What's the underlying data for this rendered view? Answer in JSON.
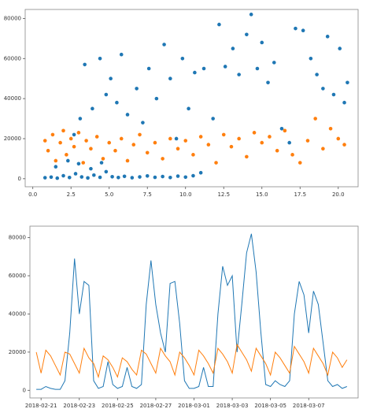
{
  "chart_data": [
    {
      "type": "scatter",
      "xlim": [
        -0.5,
        21.3
      ],
      "ylim": [
        -4000,
        84500
      ],
      "xticks": [
        {
          "value": 0,
          "label": "0.0"
        },
        2.5,
        {
          "value": 5,
          "label": "5.0"
        },
        7.5,
        {
          "value": 10,
          "label": "10.0"
        },
        12.5,
        {
          "value": 15,
          "label": "15.0"
        },
        17.5,
        {
          "value": 20,
          "label": "20.0"
        }
      ],
      "yticks": [
        0,
        20000,
        40000,
        60000,
        80000
      ],
      "series": [
        {
          "color": "#1f77b4",
          "x": [
            0.8,
            1.2,
            1.6,
            2.0,
            2.4,
            2.8,
            3.2,
            3.6,
            4.0,
            4.4,
            4.8,
            5.2,
            5.6,
            6.0,
            6.5,
            7.0,
            7.5,
            8.0,
            8.5,
            9.0,
            9.5,
            10.0,
            10.5,
            11.0,
            1.5,
            2.3,
            3.0,
            3.8,
            4.5,
            2.7,
            3.1,
            3.4,
            3.9,
            4.4,
            4.8,
            5.1,
            5.5,
            5.8,
            6.2,
            6.8,
            7.2,
            7.6,
            8.1,
            8.6,
            9.0,
            9.4,
            9.8,
            10.2,
            10.6,
            11.2,
            11.8,
            12.2,
            12.6,
            13.1,
            13.5,
            14.0,
            14.3,
            14.7,
            15.0,
            15.4,
            15.8,
            16.3,
            16.8,
            17.2,
            17.7,
            18.2,
            18.6,
            19.0,
            19.3,
            19.7,
            20.1,
            20.4,
            20.6
          ],
          "values": [
            500,
            800,
            300,
            1500,
            600,
            2500,
            900,
            400,
            1800,
            700,
            3500,
            1000,
            600,
            1200,
            500,
            900,
            1400,
            700,
            1100,
            600,
            1300,
            800,
            1500,
            3000,
            6000,
            9000,
            7500,
            5000,
            8000,
            22000,
            30000,
            57000,
            35000,
            60000,
            42000,
            50000,
            38000,
            62000,
            32000,
            45000,
            28000,
            55000,
            40000,
            67000,
            50000,
            20000,
            60000,
            35000,
            53000,
            55000,
            30000,
            77000,
            56000,
            65000,
            52000,
            72000,
            82000,
            55000,
            68000,
            48000,
            58000,
            25000,
            18000,
            75000,
            74000,
            60000,
            52000,
            45000,
            71000,
            42000,
            65000,
            38000,
            48000
          ]
        },
        {
          "color": "#ff7f0e",
          "x": [
            0.8,
            1.0,
            1.3,
            1.5,
            1.8,
            2.0,
            2.2,
            2.5,
            2.7,
            3.0,
            3.3,
            3.5,
            3.8,
            4.2,
            4.6,
            5.0,
            5.4,
            5.8,
            6.2,
            6.6,
            7.0,
            7.5,
            8.0,
            8.5,
            9.0,
            9.5,
            10.0,
            10.5,
            11.0,
            11.5,
            12.0,
            12.5,
            13.0,
            13.5,
            14.0,
            14.5,
            15.0,
            15.5,
            16.0,
            16.5,
            17.0,
            17.5,
            18.0,
            18.5,
            19.0,
            19.5,
            20.0,
            20.4
          ],
          "values": [
            19000,
            14000,
            22000,
            9000,
            18000,
            24000,
            12000,
            20000,
            16000,
            23000,
            8000,
            19000,
            15000,
            21000,
            10000,
            18000,
            14000,
            20000,
            9000,
            17000,
            22000,
            13000,
            18000,
            10000,
            20000,
            15000,
            19000,
            12000,
            21000,
            17000,
            8000,
            22000,
            16000,
            20000,
            11000,
            23000,
            18000,
            21000,
            14000,
            24000,
            12000,
            8000,
            19000,
            30000,
            15000,
            25000,
            20000,
            17000
          ]
        }
      ]
    },
    {
      "type": "line",
      "xlim": [
        "2018-02-20 10:00",
        "2018-03-09 14:00"
      ],
      "ylim": [
        -4000,
        86000
      ],
      "xticks": [
        "2018-02-21",
        "2018-02-23",
        "2018-02-25",
        "2018-02-27",
        "2018-03-01",
        "2018-03-03",
        "2018-03-05",
        "2018-03-07"
      ],
      "yticks": [
        0,
        20000,
        40000,
        60000,
        80000
      ],
      "x": [
        "2018-02-20 18:00",
        "2018-02-21 00:00",
        "2018-02-21 06:00",
        "2018-02-21 12:00",
        "2018-02-21 18:00",
        "2018-02-22 00:00",
        "2018-02-22 06:00",
        "2018-02-22 12:00",
        "2018-02-22 18:00",
        "2018-02-23 00:00",
        "2018-02-23 06:00",
        "2018-02-23 12:00",
        "2018-02-23 18:00",
        "2018-02-24 00:00",
        "2018-02-24 06:00",
        "2018-02-24 12:00",
        "2018-02-24 18:00",
        "2018-02-25 00:00",
        "2018-02-25 06:00",
        "2018-02-25 12:00",
        "2018-02-25 18:00",
        "2018-02-26 00:00",
        "2018-02-26 06:00",
        "2018-02-26 12:00",
        "2018-02-26 18:00",
        "2018-02-27 00:00",
        "2018-02-27 06:00",
        "2018-02-27 12:00",
        "2018-02-27 18:00",
        "2018-02-28 00:00",
        "2018-02-28 06:00",
        "2018-02-28 12:00",
        "2018-02-28 18:00",
        "2018-03-01 00:00",
        "2018-03-01 06:00",
        "2018-03-01 12:00",
        "2018-03-01 18:00",
        "2018-03-02 00:00",
        "2018-03-02 06:00",
        "2018-03-02 12:00",
        "2018-03-02 18:00",
        "2018-03-03 00:00",
        "2018-03-03 06:00",
        "2018-03-03 12:00",
        "2018-03-03 18:00",
        "2018-03-04 00:00",
        "2018-03-04 06:00",
        "2018-03-04 12:00",
        "2018-03-04 18:00",
        "2018-03-05 00:00",
        "2018-03-05 06:00",
        "2018-03-05 12:00",
        "2018-03-05 18:00",
        "2018-03-06 00:00",
        "2018-03-06 06:00",
        "2018-03-06 12:00",
        "2018-03-06 18:00",
        "2018-03-07 00:00",
        "2018-03-07 06:00",
        "2018-03-07 12:00",
        "2018-03-07 18:00",
        "2018-03-08 00:00",
        "2018-03-08 06:00",
        "2018-03-08 12:00",
        "2018-03-08 18:00",
        "2018-03-09 00:00"
      ],
      "series": [
        {
          "color": "#1f77b4",
          "values": [
            500,
            500,
            2000,
            1000,
            500,
            500,
            5000,
            30000,
            69000,
            40000,
            57000,
            55000,
            5000,
            1000,
            2000,
            15000,
            3000,
            1000,
            2000,
            12000,
            2000,
            1000,
            3000,
            45000,
            68000,
            45000,
            30000,
            20000,
            56000,
            57000,
            35000,
            5000,
            1000,
            1000,
            2000,
            12000,
            2000,
            2000,
            40000,
            65000,
            55000,
            60000,
            20000,
            45000,
            72000,
            82000,
            62000,
            30000,
            3000,
            2000,
            5000,
            3000,
            2000,
            5000,
            40000,
            57000,
            50000,
            30000,
            52000,
            45000,
            25000,
            5000,
            2000,
            3000,
            1000,
            2000
          ]
        },
        {
          "color": "#ff7f0e",
          "values": [
            20000,
            9000,
            21000,
            18000,
            13000,
            8000,
            20000,
            19000,
            14000,
            9000,
            22000,
            17000,
            14000,
            7000,
            18000,
            16000,
            12000,
            7000,
            17000,
            15000,
            11000,
            8000,
            21000,
            19000,
            14000,
            9000,
            22000,
            18000,
            15000,
            8000,
            20000,
            17000,
            13000,
            8000,
            21000,
            18000,
            14000,
            9000,
            22000,
            19000,
            15000,
            9000,
            24000,
            20000,
            16000,
            10000,
            22000,
            18000,
            14000,
            8000,
            20000,
            17000,
            13000,
            9000,
            23000,
            19000,
            15000,
            9000,
            22000,
            18000,
            14000,
            8000,
            20000,
            17000,
            12000,
            16000
          ]
        }
      ]
    }
  ]
}
